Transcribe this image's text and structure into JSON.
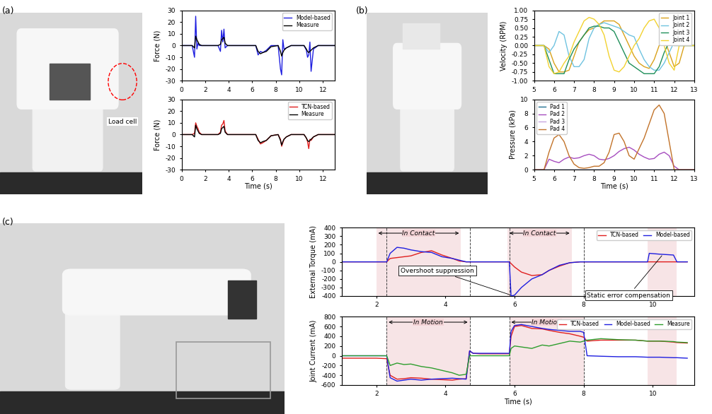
{
  "panel_labels": [
    "(a)",
    "(b)",
    "(c)"
  ],
  "photo_annotations": [
    "Load cell"
  ],
  "chart_data": [
    {
      "type": "line",
      "ylabel": "Force (N)",
      "legend": "upper right",
      "xlim": [
        0,
        13
      ],
      "xticks": [
        0,
        2,
        4,
        6,
        8,
        10,
        12
      ],
      "ylim": [
        -30,
        30
      ],
      "yticks": [
        -30,
        -20,
        -10,
        0,
        10,
        20,
        30
      ],
      "x": [
        0,
        0.9,
        1.1,
        1.2,
        1.3,
        1.4,
        1.5,
        1.7,
        2.0,
        3.1,
        3.3,
        3.4,
        3.5,
        3.6,
        3.7,
        3.9,
        4.2,
        6.3,
        6.5,
        6.7,
        6.9,
        7.2,
        7.6,
        8.2,
        8.4,
        8.5,
        8.6,
        8.7,
        8.9,
        9.3,
        10.4,
        10.6,
        10.7,
        10.8,
        10.9,
        11.0,
        11.2,
        11.6,
        12.2,
        13.0
      ],
      "series": [
        {
          "name": "Model-based",
          "color": "#1f1fe0",
          "values": [
            0,
            0,
            -10,
            25,
            -3,
            2,
            0,
            0,
            0,
            0,
            -5,
            13,
            3,
            14,
            -2,
            0,
            0,
            0,
            -8,
            -5,
            -6,
            -4,
            0,
            0,
            -20,
            -25,
            5,
            -3,
            -2,
            0,
            0,
            -4,
            -10,
            -8,
            3,
            -22,
            -3,
            0,
            0,
            0
          ]
        },
        {
          "name": "Measure",
          "color": "#000000",
          "values": [
            0,
            0,
            -2,
            8,
            5,
            3,
            1,
            0,
            0,
            0,
            1,
            5,
            6,
            7,
            2,
            0,
            0,
            0,
            -5,
            -7,
            -6,
            -5,
            -1,
            0,
            -5,
            -9,
            -6,
            -4,
            -2,
            0,
            0,
            -3,
            -5,
            -6,
            -5,
            -4,
            -2,
            0,
            0,
            0
          ]
        }
      ]
    },
    {
      "type": "line",
      "ylabel": "Force (N)",
      "xlabel": "Time (s)",
      "legend": "upper right",
      "xlim": [
        0,
        13
      ],
      "xticks": [
        0,
        2,
        4,
        6,
        8,
        10,
        12
      ],
      "ylim": [
        -30,
        30
      ],
      "yticks": [
        -30,
        -20,
        -10,
        0,
        10,
        20,
        30
      ],
      "x": [
        0,
        0.9,
        1.1,
        1.2,
        1.3,
        1.4,
        1.5,
        1.7,
        2.0,
        3.1,
        3.3,
        3.4,
        3.5,
        3.6,
        3.7,
        3.9,
        4.2,
        6.3,
        6.5,
        6.7,
        6.9,
        7.2,
        7.6,
        8.2,
        8.4,
        8.5,
        8.6,
        8.7,
        8.9,
        9.3,
        10.4,
        10.6,
        10.7,
        10.8,
        10.9,
        11.0,
        11.2,
        11.6,
        12.2,
        13.0
      ],
      "series": [
        {
          "name": "TCN-based",
          "color": "#e01f1f",
          "values": [
            0,
            0,
            1,
            10,
            7,
            5,
            2,
            0,
            0,
            0,
            2,
            8,
            9,
            12,
            3,
            0,
            0,
            0,
            -4,
            -8,
            -7,
            -5,
            -1,
            0,
            -4,
            -10,
            -7,
            -4,
            -2,
            0,
            0,
            -3,
            -6,
            -12,
            -4,
            -5,
            -2,
            0,
            0,
            0
          ]
        },
        {
          "name": "Measure",
          "color": "#000000",
          "values": [
            0,
            0,
            -2,
            8,
            5,
            3,
            1,
            0,
            0,
            0,
            1,
            5,
            6,
            7,
            2,
            0,
            0,
            0,
            -5,
            -7,
            -6,
            -5,
            -1,
            0,
            -5,
            -9,
            -6,
            -4,
            -2,
            0,
            0,
            -3,
            -5,
            -6,
            -5,
            -4,
            -2,
            0,
            0,
            0
          ]
        }
      ]
    },
    {
      "type": "line",
      "ylabel": "Velocity (RPM)",
      "legend": "upper right",
      "xlim": [
        5,
        13
      ],
      "xticks": [
        5,
        6,
        7,
        8,
        9,
        10,
        11,
        12,
        13
      ],
      "ylim": [
        -1,
        1
      ],
      "yticks": [
        {
          "value": -1,
          "label": "-1.00"
        },
        {
          "value": -0.75,
          "label": "-0.75"
        },
        {
          "value": -0.5,
          "label": "-0.50"
        },
        {
          "value": -0.25,
          "label": "-0.25"
        },
        {
          "value": 0,
          "label": "0.00"
        },
        {
          "value": 0.25,
          "label": "0.25"
        },
        {
          "value": 0.5,
          "label": "0.50"
        },
        {
          "value": 0.75,
          "label": "0.75"
        },
        {
          "value": 1,
          "label": "1.00"
        }
      ],
      "x": [
        5.0,
        5.25,
        5.5,
        5.75,
        6.0,
        6.25,
        6.5,
        6.75,
        7.0,
        7.25,
        7.5,
        7.75,
        8.0,
        8.25,
        8.5,
        8.75,
        9.0,
        9.25,
        9.5,
        9.75,
        10.0,
        10.25,
        10.5,
        10.75,
        11.0,
        11.25,
        11.5,
        11.75,
        12.0,
        12.25,
        12.5,
        12.75,
        13.0
      ],
      "series": [
        {
          "name": "Joint 1",
          "color": "#d9a21b",
          "values": [
            0,
            0,
            0,
            -0.1,
            -0.5,
            -0.75,
            -0.75,
            -0.7,
            -0.3,
            0.1,
            0.3,
            0.45,
            0.5,
            0.6,
            0.7,
            0.7,
            0.7,
            0.6,
            0.3,
            0,
            -0.3,
            -0.5,
            -0.6,
            -0.65,
            -0.4,
            0,
            0.2,
            -0.2,
            -0.6,
            -0.5,
            0,
            0,
            0
          ]
        },
        {
          "name": "Joint 2",
          "color": "#6fc3e0",
          "values": [
            0,
            0,
            0,
            -0.2,
            0,
            0.4,
            0.3,
            -0.3,
            -0.6,
            -0.6,
            -0.4,
            0.2,
            0.5,
            0.6,
            0.65,
            0.6,
            0.55,
            0.5,
            0.4,
            0.3,
            0.25,
            -0.1,
            -0.4,
            -0.6,
            -0.7,
            -0.7,
            -0.5,
            -0.2,
            0.1,
            0,
            0,
            0,
            0
          ]
        },
        {
          "name": "Joint 3",
          "color": "#1f8f5a",
          "values": [
            0,
            0,
            0,
            -0.4,
            -0.8,
            -0.8,
            -0.8,
            -0.4,
            -0.1,
            0.1,
            0.3,
            0.5,
            0.55,
            0.55,
            0.5,
            0.5,
            0.4,
            0.1,
            -0.2,
            -0.5,
            -0.6,
            -0.7,
            -0.8,
            -0.8,
            -0.8,
            -0.6,
            -0.2,
            0.1,
            0,
            0,
            0,
            0,
            0
          ]
        },
        {
          "name": "Joint 4",
          "color": "#f2d230",
          "values": [
            0,
            0,
            0,
            -0.6,
            -0.8,
            -0.75,
            -0.5,
            -0.3,
            0.1,
            0.4,
            0.7,
            0.8,
            0.75,
            0.6,
            0.3,
            -0.3,
            -0.7,
            -0.75,
            -0.6,
            -0.3,
            0,
            0.2,
            0.5,
            0.7,
            0.75,
            0.5,
            0,
            -0.5,
            -0.7,
            0,
            0,
            0,
            0
          ]
        }
      ]
    },
    {
      "type": "line",
      "ylabel": "Pressure (kPa)",
      "xlabel": "Time (s)",
      "legend": "upper left",
      "xlim": [
        5,
        13
      ],
      "xticks": [
        5,
        6,
        7,
        8,
        9,
        10,
        11,
        12,
        13
      ],
      "ylim": [
        0,
        10
      ],
      "yticks": [
        0,
        2,
        4,
        6,
        8,
        10
      ],
      "x": [
        5.0,
        5.25,
        5.5,
        5.75,
        6.0,
        6.25,
        6.5,
        6.75,
        7.0,
        7.25,
        7.5,
        7.75,
        8.0,
        8.25,
        8.5,
        8.75,
        9.0,
        9.25,
        9.5,
        9.75,
        10.0,
        10.25,
        10.5,
        10.75,
        11.0,
        11.25,
        11.5,
        11.75,
        12.0,
        12.25,
        12.5,
        12.75,
        13.0
      ],
      "series": [
        {
          "name": "Pad 1",
          "color": "#1f6f8f",
          "values": [
            0,
            0,
            0,
            0,
            0,
            0,
            0,
            0,
            0,
            0,
            0,
            0,
            0,
            0,
            0,
            0,
            0,
            0,
            0,
            0,
            0,
            0,
            0,
            0,
            0,
            0,
            0,
            0,
            0,
            0,
            0,
            0,
            0
          ]
        },
        {
          "name": "Pad 2",
          "color": "#a64dbf",
          "values": [
            0,
            0,
            0,
            1.5,
            1.2,
            1.0,
            1.5,
            1.8,
            1.6,
            1.7,
            2.0,
            2.2,
            2.0,
            1.5,
            1.4,
            1.6,
            2.0,
            2.6,
            3.0,
            3.2,
            2.8,
            2.2,
            1.8,
            1.5,
            1.6,
            2.2,
            2.5,
            2.0,
            0.5,
            0,
            0,
            0,
            0
          ]
        },
        {
          "name": "Pad 3",
          "color": "#c7a6e0",
          "values": [
            0,
            0,
            0,
            0,
            0,
            0,
            0,
            0,
            0,
            0,
            0,
            0,
            0,
            0,
            0,
            0,
            0,
            0,
            0,
            0,
            0,
            0,
            0,
            0,
            0,
            0,
            0,
            0,
            0,
            0,
            0,
            0,
            0
          ]
        },
        {
          "name": "Pad 4",
          "color": "#c2732a",
          "values": [
            0,
            0,
            0,
            2.5,
            4.5,
            5.0,
            4.0,
            2.0,
            0.8,
            0.3,
            0.2,
            0.3,
            0.5,
            0.5,
            1.0,
            2.5,
            5.0,
            5.2,
            4.0,
            2.0,
            1.5,
            3.0,
            4.5,
            6.5,
            8.5,
            9.2,
            8.0,
            4.0,
            0,
            0,
            0,
            0,
            0
          ]
        }
      ]
    },
    {
      "type": "line",
      "ylabel": "External Torque (mA)",
      "legend": "upper right",
      "xlim": [
        1,
        11.2
      ],
      "xticks": [
        2,
        4,
        6,
        8,
        10
      ],
      "ylim": [
        -400,
        400
      ],
      "yticks": [
        -400,
        -300,
        -200,
        -100,
        0,
        100,
        200,
        300,
        400
      ],
      "spans": [
        {
          "label": "In Contact",
          "x": [
            2.0,
            4.45
          ]
        },
        {
          "label": "In Contact",
          "x": [
            5.8,
            7.65
          ]
        },
        {
          "x": [
            9.85,
            10.7
          ]
        }
      ],
      "vlines": [
        2.3,
        4.7,
        5.85,
        8.0
      ],
      "annotations": [
        {
          "text": "Overshoot suppression",
          "x": 5.9,
          "y": -390
        },
        {
          "text": "Static error compensation",
          "x": 10.3,
          "y": 90
        }
      ],
      "x": [
        1.0,
        1.5,
        2.0,
        2.3,
        2.4,
        2.6,
        2.8,
        3.0,
        3.3,
        3.6,
        3.9,
        4.2,
        4.4,
        4.6,
        4.7,
        4.8,
        5.0,
        5.5,
        5.85,
        5.9,
        6.0,
        6.2,
        6.5,
        6.8,
        7.0,
        7.3,
        7.6,
        7.9,
        8.0,
        8.1,
        8.5,
        9.0,
        9.5,
        9.85,
        9.9,
        10.2,
        10.6,
        10.7,
        11.0
      ],
      "series": [
        {
          "name": "TCN-based",
          "color": "#e01f1f",
          "values": [
            0,
            0,
            0,
            0,
            40,
            50,
            60,
            70,
            110,
            130,
            80,
            40,
            10,
            0,
            0,
            0,
            0,
            0,
            0,
            -20,
            -60,
            -120,
            -160,
            -150,
            -100,
            -50,
            -10,
            0,
            0,
            0,
            0,
            0,
            0,
            0,
            0,
            0,
            0,
            0,
            0
          ]
        },
        {
          "name": "Model-based",
          "color": "#1f1fe0",
          "values": [
            0,
            0,
            0,
            0,
            100,
            170,
            160,
            140,
            120,
            110,
            60,
            40,
            20,
            0,
            0,
            0,
            0,
            0,
            0,
            -400,
            -390,
            -300,
            -200,
            -150,
            -100,
            -40,
            -10,
            0,
            0,
            0,
            0,
            0,
            0,
            0,
            100,
            90,
            80,
            0,
            0
          ]
        }
      ]
    },
    {
      "type": "line",
      "ylabel": "Joint Current (mA)",
      "xlabel": "Time (s)",
      "legend": "upper right",
      "xlim": [
        1,
        11.2
      ],
      "xticks": [
        2,
        4,
        6,
        8,
        10
      ],
      "ylim": [
        -600,
        800
      ],
      "yticks": [
        -600,
        -400,
        -200,
        0,
        200,
        400,
        600,
        800
      ],
      "spans": [
        {
          "label": "In Motion",
          "x": [
            2.3,
            4.7
          ]
        },
        {
          "label": "In Motion",
          "x": [
            5.85,
            8.0
          ]
        },
        {
          "x": [
            9.85,
            10.7
          ]
        }
      ],
      "vlines": [
        2.3,
        4.7,
        5.85,
        8.0
      ],
      "x": [
        1.0,
        1.5,
        2.0,
        2.3,
        2.4,
        2.6,
        2.8,
        3.0,
        3.3,
        3.6,
        3.9,
        4.2,
        4.4,
        4.6,
        4.7,
        4.8,
        5.0,
        5.5,
        5.85,
        5.9,
        6.0,
        6.2,
        6.5,
        6.8,
        7.0,
        7.3,
        7.6,
        7.9,
        8.0,
        8.1,
        8.5,
        9.0,
        9.5,
        9.85,
        9.9,
        10.2,
        10.6,
        10.7,
        11.0
      ],
      "series": [
        {
          "name": "TCN-based",
          "color": "#e01f1f",
          "values": [
            -50,
            -50,
            -50,
            -60,
            -400,
            -480,
            -470,
            -450,
            -460,
            -480,
            -490,
            -500,
            -480,
            -470,
            100,
            50,
            40,
            40,
            40,
            400,
            600,
            620,
            560,
            550,
            520,
            480,
            450,
            400,
            380,
            300,
            320,
            320,
            320,
            300,
            300,
            300,
            280,
            270,
            260
          ]
        },
        {
          "name": "Model-based",
          "color": "#1f1fe0",
          "values": [
            0,
            0,
            0,
            0,
            -450,
            -520,
            -500,
            -480,
            -500,
            -480,
            -470,
            -460,
            -470,
            -480,
            100,
            50,
            50,
            50,
            50,
            500,
            620,
            640,
            600,
            560,
            540,
            520,
            500,
            500,
            480,
            0,
            -10,
            -20,
            -20,
            -30,
            -30,
            -30,
            -40,
            -40,
            -50
          ]
        },
        {
          "name": "Measure",
          "color": "#2e9e2e",
          "values": [
            0,
            0,
            0,
            0,
            -200,
            -150,
            -180,
            -170,
            -220,
            -250,
            -300,
            -350,
            -400,
            -380,
            0,
            0,
            0,
            0,
            0,
            150,
            200,
            180,
            150,
            220,
            200,
            250,
            300,
            280,
            300,
            320,
            350,
            330,
            320,
            300,
            300,
            300,
            290,
            280,
            270
          ]
        }
      ]
    }
  ]
}
